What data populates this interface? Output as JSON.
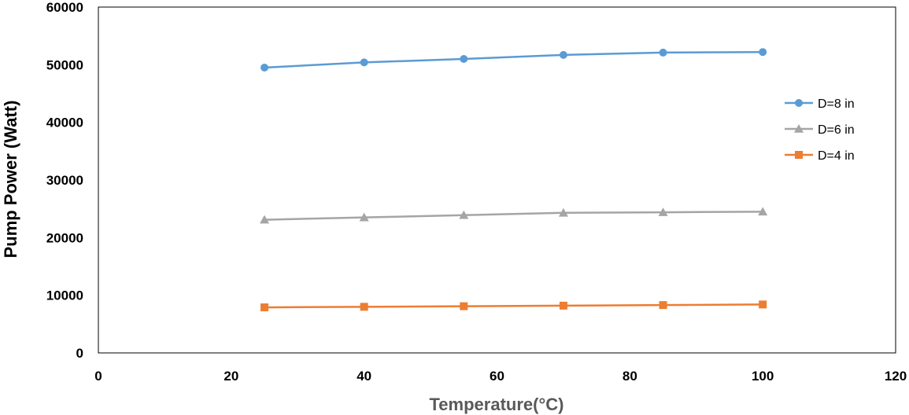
{
  "chart_data": {
    "type": "line",
    "title": "",
    "xlabel": "Temperature(°C)",
    "ylabel": "Pump Power (Watt)",
    "xlim": [
      0,
      120
    ],
    "ylim": [
      0,
      60000
    ],
    "xticks": [
      "0",
      "20",
      "40",
      "60",
      "80",
      "100",
      "120"
    ],
    "yticks": [
      "0",
      "10000",
      "20000",
      "30000",
      "40000",
      "50000",
      "60000"
    ],
    "xtick_values": [
      0,
      20,
      40,
      60,
      80,
      100,
      120
    ],
    "ytick_values": [
      0,
      10000,
      20000,
      30000,
      40000,
      50000,
      60000
    ],
    "grid": false,
    "legend_position": "right",
    "x": [
      25,
      40,
      55,
      70,
      85,
      100
    ],
    "series": [
      {
        "name": "D=8 in",
        "values": [
          49500,
          50400,
          51000,
          51700,
          52100,
          52200
        ],
        "color": "#5b9bd5",
        "marker": "circle"
      },
      {
        "name": "D=6 in",
        "values": [
          23100,
          23500,
          23900,
          24300,
          24400,
          24500
        ],
        "color": "#a5a5a5",
        "marker": "triangle"
      },
      {
        "name": "D=4 in",
        "values": [
          7900,
          8000,
          8100,
          8200,
          8300,
          8400
        ],
        "color": "#ed7d31",
        "marker": "square"
      }
    ]
  },
  "colors": {
    "axis_title": "#595959",
    "axis_title_y": "#000000",
    "frame": "#000000"
  }
}
